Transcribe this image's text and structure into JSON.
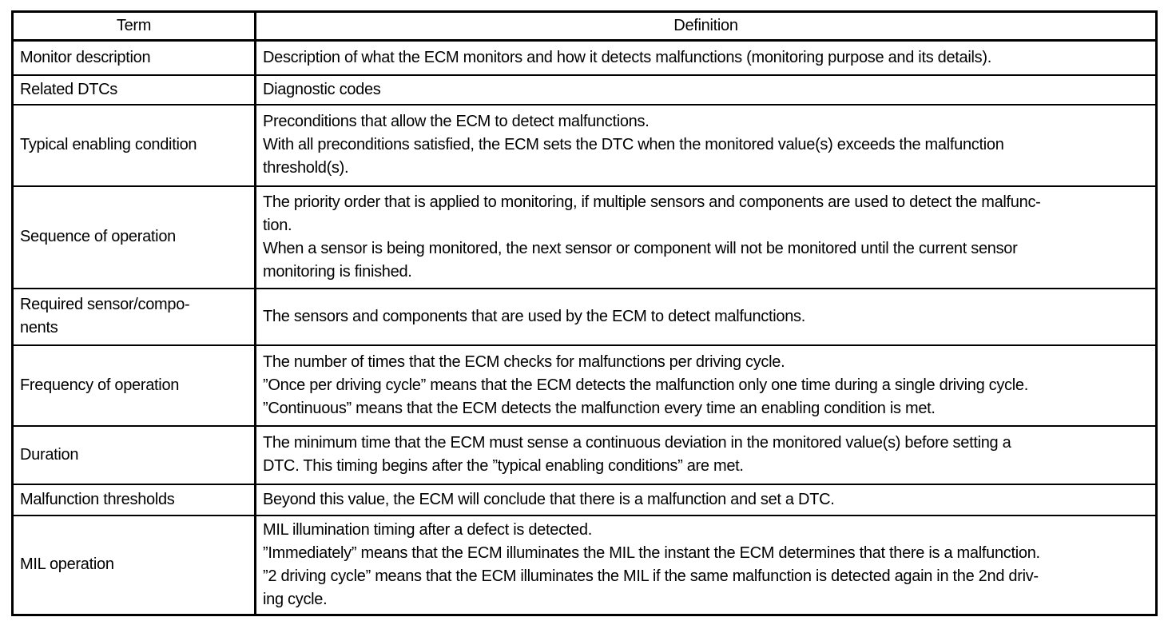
{
  "colors": {
    "background": "#ffffff",
    "border": "#000000",
    "text": "#000000"
  },
  "table": {
    "headers": [
      "Term",
      "Definition"
    ],
    "rows": [
      {
        "term": "Monitor description",
        "definition": "Description of what the ECM monitors and how it detects malfunctions (monitoring purpose and its details)."
      },
      {
        "term": "Related DTCs",
        "definition": "Diagnostic codes"
      },
      {
        "term": "Typical enabling condition",
        "definition": "Preconditions that allow the ECM to detect malfunctions.\nWith all preconditions satisfied, the ECM sets the DTC when the monitored value(s) exceeds the malfunction\nthreshold(s)."
      },
      {
        "term": "Sequence of operation",
        "definition": "The priority order that is applied to monitoring, if multiple sensors and components are used to detect the malfunc-\ntion.\nWhen a sensor is being monitored, the next sensor or component will not be monitored until the current sensor\nmonitoring is finished."
      },
      {
        "term": "Required sensor/compo-\nnents",
        "definition": "The sensors and components that are used by the ECM to detect malfunctions."
      },
      {
        "term": "Frequency of operation",
        "definition": "The number of times that the ECM checks for malfunctions per driving cycle.\n”Once per driving cycle” means that the ECM detects the malfunction only one time during a single driving cycle.\n”Continuous” means that the ECM detects the malfunction every time an enabling condition is met."
      },
      {
        "term": "Duration",
        "definition": "The minimum time that the ECM must sense a continuous deviation in the monitored value(s) before setting a\nDTC. This timing begins after the ”typical enabling conditions” are met."
      },
      {
        "term": "Malfunction thresholds",
        "definition": "Beyond this value, the ECM will conclude that there is a malfunction and set a DTC."
      },
      {
        "term": "MIL operation",
        "definition": "MIL illumination timing after a defect is detected.\n”Immediately” means that the ECM illuminates the MIL the instant the ECM determines that there is a malfunction.\n”2 driving cycle” means that the ECM illuminates the MIL if the same malfunction is detected again in the 2nd driv-\ning cycle."
      }
    ]
  }
}
